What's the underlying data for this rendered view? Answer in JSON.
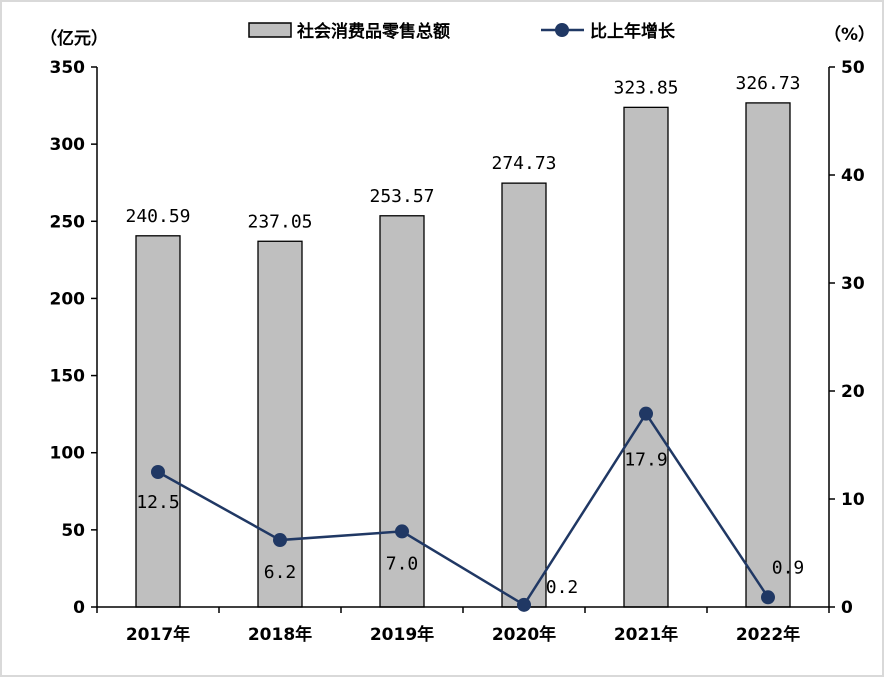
{
  "chart_data": {
    "type": "bar+line",
    "categories": [
      "2017年",
      "2018年",
      "2019年",
      "2020年",
      "2021年",
      "2022年"
    ],
    "series": [
      {
        "name": "社会消费品零售总额",
        "type": "bar",
        "axis": "left",
        "values": [
          240.59,
          237.05,
          253.57,
          274.73,
          323.85,
          326.73
        ],
        "labels": [
          "240.59",
          "237.05",
          "253.57",
          "274.73",
          "323.85",
          "326.73"
        ],
        "color": "#bfbfbf"
      },
      {
        "name": "比上年增长",
        "type": "line",
        "axis": "right",
        "values": [
          12.5,
          6.2,
          7.0,
          0.2,
          17.9,
          0.9
        ],
        "labels": [
          "12.5",
          "6.2",
          "7.0",
          "0.2",
          "17.9",
          "0.9"
        ],
        "color": "#203864"
      }
    ],
    "y_left": {
      "label": "（亿元）",
      "lim": [
        0,
        350
      ],
      "ticks": [
        "0",
        "50",
        "100",
        "150",
        "200",
        "250",
        "300",
        "350"
      ]
    },
    "y_right": {
      "label": "（%）",
      "lim": [
        0,
        50
      ],
      "ticks": [
        "0",
        "10",
        "20",
        "30",
        "40",
        "50"
      ]
    },
    "legend": "top-center",
    "grid": false
  }
}
